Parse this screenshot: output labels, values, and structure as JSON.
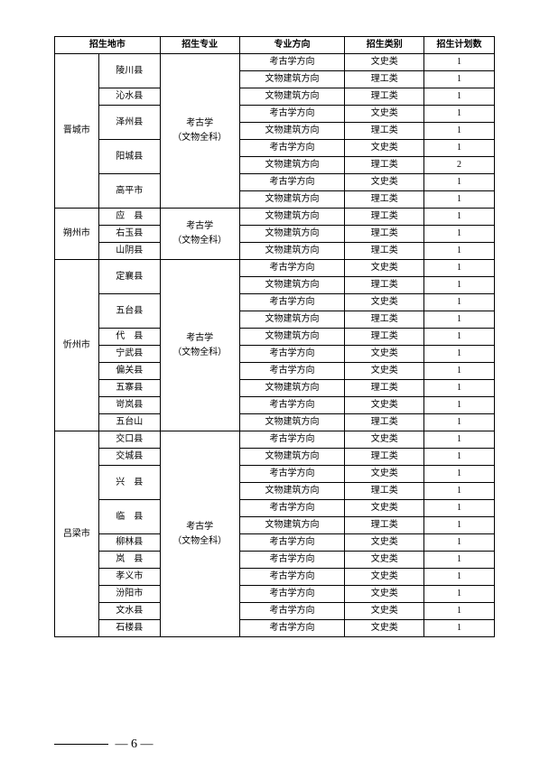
{
  "headers": {
    "city": "招生地市",
    "major": "招生专业",
    "direction": "专业方向",
    "category": "招生类别",
    "count": "招生计划数"
  },
  "major_label_line1": "考古学",
  "major_label_line2": "（文物全科）",
  "page_number": "6",
  "rows": [
    {
      "city": "晋城市",
      "county": "陵川县",
      "direction": "考古学方向",
      "category": "文史类",
      "count": "1",
      "city_rowspan": 9,
      "county_rowspan": 2,
      "major_rowspan": 9
    },
    {
      "direction": "文物建筑方向",
      "category": "理工类",
      "count": "1"
    },
    {
      "county": "沁水县",
      "direction": "文物建筑方向",
      "category": "理工类",
      "count": "1",
      "county_rowspan": 1
    },
    {
      "county": "泽州县",
      "direction": "考古学方向",
      "category": "文史类",
      "count": "1",
      "county_rowspan": 2
    },
    {
      "direction": "文物建筑方向",
      "category": "理工类",
      "count": "1"
    },
    {
      "county": "阳城县",
      "direction": "考古学方向",
      "category": "文史类",
      "count": "1",
      "county_rowspan": 2
    },
    {
      "direction": "文物建筑方向",
      "category": "理工类",
      "count": "2"
    },
    {
      "county": "高平市",
      "direction": "考古学方向",
      "category": "文史类",
      "count": "1",
      "county_rowspan": 2
    },
    {
      "direction": "文物建筑方向",
      "category": "理工类",
      "count": "1"
    },
    {
      "city": "朔州市",
      "county": "应　县",
      "direction": "文物建筑方向",
      "category": "理工类",
      "count": "1",
      "city_rowspan": 3,
      "county_rowspan": 1,
      "major_rowspan": 3
    },
    {
      "county": "右玉县",
      "direction": "文物建筑方向",
      "category": "理工类",
      "count": "1",
      "county_rowspan": 1
    },
    {
      "county": "山阴县",
      "direction": "文物建筑方向",
      "category": "理工类",
      "count": "1",
      "county_rowspan": 1
    },
    {
      "city": "忻州市",
      "county": "定襄县",
      "direction": "考古学方向",
      "category": "文史类",
      "count": "1",
      "city_rowspan": 10,
      "county_rowspan": 2,
      "major_rowspan": 10
    },
    {
      "direction": "文物建筑方向",
      "category": "理工类",
      "count": "1"
    },
    {
      "county": "五台县",
      "direction": "考古学方向",
      "category": "文史类",
      "count": "1",
      "county_rowspan": 2
    },
    {
      "direction": "文物建筑方向",
      "category": "理工类",
      "count": "1"
    },
    {
      "county": "代　县",
      "direction": "文物建筑方向",
      "category": "理工类",
      "count": "1",
      "county_rowspan": 1
    },
    {
      "county": "宁武县",
      "direction": "考古学方向",
      "category": "文史类",
      "count": "1",
      "county_rowspan": 1
    },
    {
      "county": "偏关县",
      "direction": "考古学方向",
      "category": "文史类",
      "count": "1",
      "county_rowspan": 1
    },
    {
      "county": "五寨县",
      "direction": "文物建筑方向",
      "category": "理工类",
      "count": "1",
      "county_rowspan": 1
    },
    {
      "county": "岢岚县",
      "direction": "考古学方向",
      "category": "文史类",
      "count": "1",
      "county_rowspan": 1
    },
    {
      "county": "五台山",
      "direction": "文物建筑方向",
      "category": "理工类",
      "count": "1",
      "county_rowspan": 1
    },
    {
      "city": "吕梁市",
      "county": "交口县",
      "direction": "考古学方向",
      "category": "文史类",
      "count": "1",
      "city_rowspan": 12,
      "county_rowspan": 1,
      "major_rowspan": 12
    },
    {
      "county": "交城县",
      "direction": "文物建筑方向",
      "category": "理工类",
      "count": "1",
      "county_rowspan": 1
    },
    {
      "county": "兴　县",
      "direction": "考古学方向",
      "category": "文史类",
      "count": "1",
      "county_rowspan": 2
    },
    {
      "direction": "文物建筑方向",
      "category": "理工类",
      "count": "1"
    },
    {
      "county": "临　县",
      "direction": "考古学方向",
      "category": "文史类",
      "count": "1",
      "county_rowspan": 2
    },
    {
      "direction": "文物建筑方向",
      "category": "理工类",
      "count": "1"
    },
    {
      "county": "柳林县",
      "direction": "考古学方向",
      "category": "文史类",
      "count": "1",
      "county_rowspan": 1
    },
    {
      "county": "岚　县",
      "direction": "考古学方向",
      "category": "文史类",
      "count": "1",
      "county_rowspan": 1
    },
    {
      "county": "孝义市",
      "direction": "考古学方向",
      "category": "文史类",
      "count": "1",
      "county_rowspan": 1
    },
    {
      "county": "汾阳市",
      "direction": "考古学方向",
      "category": "文史类",
      "count": "1",
      "county_rowspan": 1
    },
    {
      "county": "文水县",
      "direction": "考古学方向",
      "category": "文史类",
      "count": "1",
      "county_rowspan": 1
    },
    {
      "county": "石楼县",
      "direction": "考古学方向",
      "category": "文史类",
      "count": "1",
      "county_rowspan": 1
    }
  ]
}
